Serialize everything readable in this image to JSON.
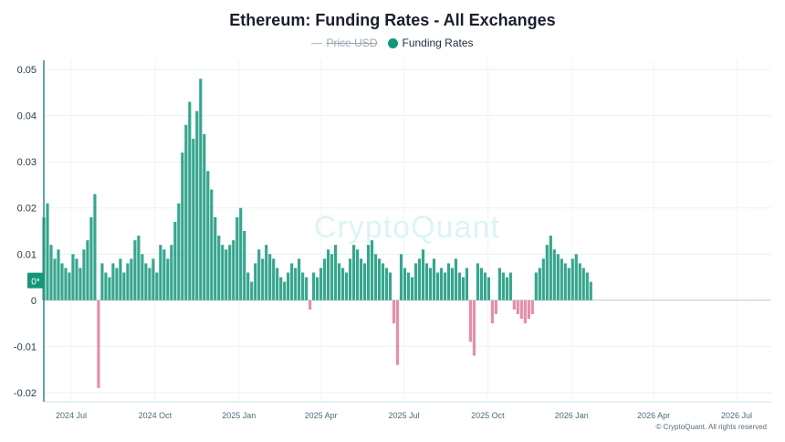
{
  "chart_data": {
    "type": "bar",
    "title": "Ethereum: Funding Rates - All Exchanges",
    "legend": [
      {
        "name": "Price USD",
        "color": "#9cc9c9",
        "hidden": true
      },
      {
        "name": "Funding Rates",
        "color": "#13967a",
        "hidden": false
      }
    ],
    "ylim": [
      -0.022,
      0.052
    ],
    "yticks": [
      "0.05",
      "0.04",
      "0.03",
      "0.02",
      "0.01",
      "0",
      "-0.01",
      "-0.02"
    ],
    "ytick_values": [
      0.05,
      0.04,
      0.03,
      0.02,
      0.01,
      0,
      -0.01,
      -0.02
    ],
    "y_marker_label": "0*",
    "xlim": [
      "2024-06-01",
      "2026-08-08"
    ],
    "xticks": [
      "2024 Jul",
      "2024 Oct",
      "2025 Jan",
      "2025 Apr",
      "2025 Jul",
      "2025 Oct",
      "2026 Jan",
      "2026 Apr",
      "2026 Jul"
    ],
    "xtick_dates": [
      "2024-07-01",
      "2024-10-01",
      "2025-01-01",
      "2025-04-01",
      "2025-07-01",
      "2025-10-01",
      "2026-01-01",
      "2026-04-01",
      "2026-07-01"
    ],
    "positive_color": "#13967a",
    "negative_color": "#e07a9b",
    "series": [
      {
        "name": "Funding Rates",
        "start_date": "2024-06-01",
        "interval_days": 4,
        "values": [
          0.018,
          0.021,
          0.012,
          0.009,
          0.011,
          0.008,
          0.007,
          0.006,
          0.01,
          0.009,
          0.007,
          0.011,
          0.013,
          0.018,
          0.023,
          -0.019,
          0.008,
          0.006,
          0.005,
          0.008,
          0.007,
          0.009,
          0.006,
          0.008,
          0.009,
          0.013,
          0.014,
          0.01,
          0.008,
          0.007,
          0.009,
          0.006,
          0.012,
          0.011,
          0.009,
          0.012,
          0.017,
          0.021,
          0.032,
          0.038,
          0.043,
          0.035,
          0.041,
          0.048,
          0.036,
          0.028,
          0.024,
          0.018,
          0.014,
          0.012,
          0.011,
          0.012,
          0.013,
          0.018,
          0.02,
          0.015,
          0.006,
          0.004,
          0.008,
          0.011,
          0.009,
          0.012,
          0.01,
          0.009,
          0.007,
          0.005,
          0.004,
          0.006,
          0.008,
          0.007,
          0.009,
          0.006,
          0.005,
          -0.002,
          0.006,
          0.005,
          0.007,
          0.009,
          0.011,
          0.01,
          0.012,
          0.008,
          0.007,
          0.006,
          0.009,
          0.012,
          0.011,
          0.009,
          0.008,
          0.012,
          0.013,
          0.01,
          0.009,
          0.008,
          0.007,
          0.006,
          -0.005,
          -0.014,
          0.01,
          0.007,
          0.006,
          0.005,
          0.008,
          0.009,
          0.011,
          0.008,
          0.007,
          0.009,
          0.006,
          0.007,
          0.006,
          0.008,
          0.007,
          0.009,
          0.006,
          0.005,
          0.007,
          -0.009,
          -0.012,
          0.008,
          0.007,
          0.006,
          0.005,
          -0.005,
          -0.003,
          0.007,
          0.006,
          0.005,
          0.006,
          -0.002,
          -0.003,
          -0.004,
          -0.005,
          -0.004,
          -0.003,
          0.006,
          0.007,
          0.009,
          0.012,
          0.014,
          0.011,
          0.01,
          0.009,
          0.008,
          0.007,
          0.009,
          0.01,
          0.008,
          0.007,
          0.006,
          0.004
        ]
      }
    ],
    "watermark": "CryptoQuant",
    "credit": "© CryptoQuant. All rights reserved"
  }
}
